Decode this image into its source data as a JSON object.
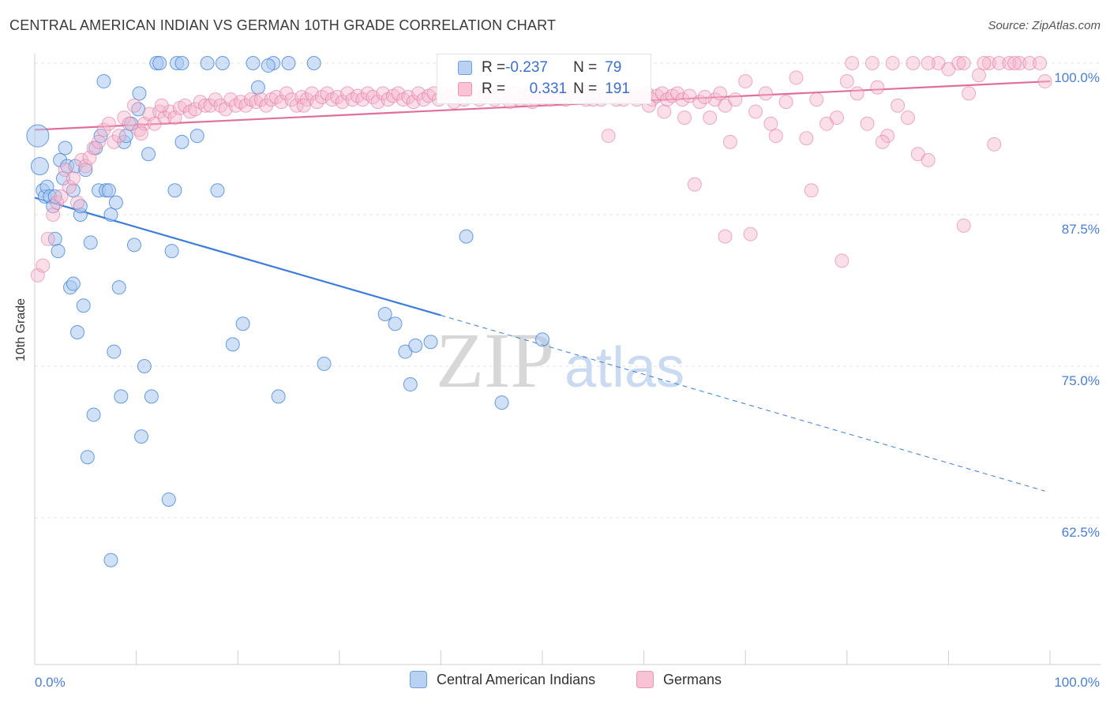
{
  "header": {
    "title": "CENTRAL AMERICAN INDIAN VS GERMAN 10TH GRADE CORRELATION CHART",
    "source": "Source: ZipAtlas.com"
  },
  "watermark": {
    "zip": "ZIP",
    "atlas": "atlas"
  },
  "stats": {
    "blue": {
      "r_label": "R = ",
      "r_value": "-0.237",
      "n_label": "N = ",
      "n_value": "79"
    },
    "pink": {
      "r_label": "R = ",
      "r_value": "0.331",
      "n_label": "N = ",
      "n_value": "191"
    }
  },
  "legend": {
    "blue_label": "Central American Indians",
    "pink_label": "Germans"
  },
  "colors": {
    "blue": "#3b7dd8",
    "blue_fill": "#a9c8f0",
    "pink": "#e0709a",
    "pink_fill": "#f4b6cb",
    "axis_text": "#4a7fd1"
  },
  "chart_data": {
    "type": "scatter",
    "title": "CENTRAL AMERICAN INDIAN VS GERMAN 10TH GRADE CORRELATION CHART",
    "xlabel": "",
    "ylabel": "10th Grade",
    "x_tick_labels": [
      "0.0%",
      "100.0%"
    ],
    "y_tick_labels": [
      "100.0%",
      "87.5%",
      "75.0%",
      "62.5%"
    ],
    "y_ticks": [
      100.0,
      87.5,
      75.0,
      62.5
    ],
    "xlim": [
      0,
      100
    ],
    "ylim": [
      50.5,
      101
    ],
    "grid": true,
    "series": [
      {
        "name": "Central American Indians",
        "color": "#3b7dd8",
        "trend": {
          "x": [
            0,
            40
          ],
          "y": [
            88.9,
            79.2
          ],
          "dashed_to": {
            "x": 99.5,
            "y": 64.7
          }
        },
        "points": [
          [
            0.3,
            94.0
          ],
          [
            0.5,
            91.5
          ],
          [
            0.8,
            89.5
          ],
          [
            1.0,
            89.0
          ],
          [
            1.2,
            89.8
          ],
          [
            1.5,
            89.0
          ],
          [
            1.8,
            88.2
          ],
          [
            2.0,
            85.5
          ],
          [
            2.3,
            84.5
          ],
          [
            2.5,
            92.0
          ],
          [
            2.8,
            90.5
          ],
          [
            3.0,
            93.0
          ],
          [
            3.2,
            91.5
          ],
          [
            3.5,
            81.5
          ],
          [
            3.8,
            81.8
          ],
          [
            4.0,
            91.5
          ],
          [
            4.2,
            77.8
          ],
          [
            4.5,
            87.5
          ],
          [
            4.8,
            80.0
          ],
          [
            5.0,
            91.2
          ],
          [
            5.2,
            67.5
          ],
          [
            5.5,
            85.2
          ],
          [
            5.8,
            71.0
          ],
          [
            6.0,
            93.0
          ],
          [
            6.3,
            89.5
          ],
          [
            6.5,
            94.0
          ],
          [
            6.8,
            98.5
          ],
          [
            7.0,
            89.5
          ],
          [
            7.3,
            89.5
          ],
          [
            7.5,
            87.5
          ],
          [
            7.8,
            76.2
          ],
          [
            8.0,
            88.5
          ],
          [
            8.3,
            81.5
          ],
          [
            8.5,
            72.5
          ],
          [
            8.8,
            93.5
          ],
          [
            9.0,
            94.0
          ],
          [
            7.5,
            59.0
          ],
          [
            9.5,
            95.0
          ],
          [
            9.8,
            85.0
          ],
          [
            10.2,
            96.2
          ],
          [
            10.3,
            97.5
          ],
          [
            10.5,
            69.2
          ],
          [
            10.8,
            75.0
          ],
          [
            11.2,
            92.5
          ],
          [
            11.5,
            72.5
          ],
          [
            12.0,
            100.0
          ],
          [
            12.3,
            100.0
          ],
          [
            13.2,
            64.0
          ],
          [
            13.5,
            84.5
          ],
          [
            13.8,
            89.5
          ],
          [
            14.0,
            100.0
          ],
          [
            14.5,
            93.5
          ],
          [
            16.0,
            94.0
          ],
          [
            17.0,
            100.0
          ],
          [
            18.0,
            89.5
          ],
          [
            18.5,
            100.0
          ],
          [
            14.5,
            100.0
          ],
          [
            19.5,
            76.8
          ],
          [
            20.5,
            78.5
          ],
          [
            21.5,
            100.0
          ],
          [
            22.0,
            98.0
          ],
          [
            23.5,
            100.0
          ],
          [
            23.0,
            99.8
          ],
          [
            24.0,
            72.5
          ],
          [
            25.0,
            100.0
          ],
          [
            27.5,
            100.0
          ],
          [
            28.5,
            75.2
          ],
          [
            34.5,
            79.3
          ],
          [
            35.5,
            78.5
          ],
          [
            36.5,
            76.2
          ],
          [
            37.0,
            73.5
          ],
          [
            37.5,
            76.7
          ],
          [
            39.0,
            77.0
          ],
          [
            42.5,
            85.7
          ],
          [
            46.0,
            72.0
          ],
          [
            50.0,
            77.2
          ],
          [
            2.0,
            89.0
          ],
          [
            4.5,
            88.2
          ],
          [
            3.8,
            89.5
          ]
        ]
      },
      {
        "name": "Germans",
        "color": "#e0709a",
        "trend": {
          "x": [
            0,
            100
          ],
          "y": [
            94.5,
            98.5
          ]
        },
        "points": [
          [
            0.3,
            82.5
          ],
          [
            0.8,
            83.3
          ],
          [
            1.3,
            85.5
          ],
          [
            1.8,
            87.5
          ],
          [
            2.2,
            88.5
          ],
          [
            2.6,
            89.0
          ],
          [
            3.0,
            91.2
          ],
          [
            3.4,
            89.8
          ],
          [
            3.8,
            90.5
          ],
          [
            4.2,
            88.5
          ],
          [
            4.6,
            92.0
          ],
          [
            5.0,
            91.5
          ],
          [
            5.4,
            92.2
          ],
          [
            5.8,
            93.0
          ],
          [
            6.3,
            93.5
          ],
          [
            6.8,
            94.5
          ],
          [
            7.3,
            95.0
          ],
          [
            7.8,
            93.5
          ],
          [
            8.3,
            94.0
          ],
          [
            8.8,
            95.5
          ],
          [
            9.3,
            95.0
          ],
          [
            9.8,
            96.5
          ],
          [
            10.3,
            94.5
          ],
          [
            10.8,
            95.0
          ],
          [
            11.3,
            95.8
          ],
          [
            11.8,
            95.0
          ],
          [
            12.3,
            96.0
          ],
          [
            12.8,
            95.5
          ],
          [
            13.3,
            96.0
          ],
          [
            13.8,
            95.5
          ],
          [
            14.3,
            96.3
          ],
          [
            14.8,
            96.5
          ],
          [
            15.3,
            96.0
          ],
          [
            15.8,
            96.2
          ],
          [
            16.3,
            96.8
          ],
          [
            16.8,
            96.5
          ],
          [
            17.3,
            96.5
          ],
          [
            17.8,
            97.0
          ],
          [
            18.3,
            96.5
          ],
          [
            18.8,
            96.2
          ],
          [
            19.3,
            97.0
          ],
          [
            19.8,
            96.5
          ],
          [
            20.3,
            96.8
          ],
          [
            20.8,
            96.5
          ],
          [
            21.3,
            97.0
          ],
          [
            21.8,
            96.8
          ],
          [
            22.3,
            97.0
          ],
          [
            22.8,
            96.5
          ],
          [
            23.3,
            97.0
          ],
          [
            23.8,
            97.2
          ],
          [
            24.3,
            96.8
          ],
          [
            24.8,
            97.5
          ],
          [
            25.3,
            97.0
          ],
          [
            25.8,
            96.5
          ],
          [
            26.3,
            97.2
          ],
          [
            26.8,
            97.0
          ],
          [
            27.3,
            97.5
          ],
          [
            27.8,
            96.8
          ],
          [
            28.3,
            97.2
          ],
          [
            28.8,
            97.5
          ],
          [
            29.3,
            97.0
          ],
          [
            29.8,
            97.2
          ],
          [
            30.3,
            96.8
          ],
          [
            30.8,
            97.5
          ],
          [
            31.3,
            97.0
          ],
          [
            31.8,
            97.3
          ],
          [
            32.3,
            97.0
          ],
          [
            32.8,
            97.5
          ],
          [
            33.3,
            97.2
          ],
          [
            33.8,
            96.8
          ],
          [
            34.3,
            97.5
          ],
          [
            34.8,
            97.0
          ],
          [
            35.3,
            97.3
          ],
          [
            35.8,
            97.5
          ],
          [
            36.3,
            97.0
          ],
          [
            36.8,
            97.2
          ],
          [
            37.3,
            96.8
          ],
          [
            37.8,
            97.5
          ],
          [
            38.3,
            97.0
          ],
          [
            38.8,
            97.3
          ],
          [
            39.3,
            97.5
          ],
          [
            39.8,
            97.0
          ],
          [
            40.3,
            97.5
          ],
          [
            40.8,
            97.2
          ],
          [
            41.3,
            96.8
          ],
          [
            41.8,
            97.5
          ],
          [
            42.3,
            97.0
          ],
          [
            42.8,
            97.3
          ],
          [
            43.3,
            97.5
          ],
          [
            43.8,
            97.0
          ],
          [
            44.3,
            97.3
          ],
          [
            44.8,
            97.5
          ],
          [
            45.3,
            97.0
          ],
          [
            45.8,
            97.5
          ],
          [
            46.3,
            97.2
          ],
          [
            46.8,
            96.8
          ],
          [
            47.3,
            97.5
          ],
          [
            47.8,
            97.0
          ],
          [
            48.3,
            97.3
          ],
          [
            48.8,
            97.5
          ],
          [
            49.3,
            97.0
          ],
          [
            49.8,
            97.5
          ],
          [
            50.3,
            97.2
          ],
          [
            50.8,
            97.0
          ],
          [
            51.3,
            97.5
          ],
          [
            51.8,
            97.3
          ],
          [
            52.3,
            97.0
          ],
          [
            52.8,
            97.5
          ],
          [
            53.3,
            97.2
          ],
          [
            53.8,
            97.5
          ],
          [
            54.3,
            97.0
          ],
          [
            54.8,
            97.3
          ],
          [
            55.3,
            97.5
          ],
          [
            55.8,
            97.0
          ],
          [
            56.3,
            97.3
          ],
          [
            56.8,
            97.5
          ],
          [
            57.3,
            97.0
          ],
          [
            57.8,
            97.5
          ],
          [
            58.3,
            97.2
          ],
          [
            58.8,
            97.5
          ],
          [
            59.3,
            97.0
          ],
          [
            59.8,
            97.3
          ],
          [
            60.3,
            97.5
          ],
          [
            60.8,
            97.0
          ],
          [
            61.3,
            97.3
          ],
          [
            61.8,
            97.5
          ],
          [
            62.3,
            97.0
          ],
          [
            62.8,
            97.3
          ],
          [
            63.3,
            97.5
          ],
          [
            63.8,
            97.0
          ],
          [
            64.5,
            97.3
          ],
          [
            65.5,
            96.8
          ],
          [
            66.5,
            95.5
          ],
          [
            67.0,
            97.0
          ],
          [
            67.5,
            97.5
          ],
          [
            68.0,
            96.5
          ],
          [
            68.5,
            93.5
          ],
          [
            69.0,
            97.0
          ],
          [
            70.0,
            98.5
          ],
          [
            71.0,
            96.0
          ],
          [
            72.0,
            97.5
          ],
          [
            73.0,
            94.0
          ],
          [
            74.0,
            96.8
          ],
          [
            75.0,
            98.8
          ],
          [
            76.0,
            93.8
          ],
          [
            77.0,
            97.0
          ],
          [
            78.0,
            95.0
          ],
          [
            79.0,
            95.5
          ],
          [
            80.0,
            98.5
          ],
          [
            81.0,
            97.5
          ],
          [
            82.0,
            95.0
          ],
          [
            83.0,
            98.0
          ],
          [
            84.0,
            94.0
          ],
          [
            85.0,
            96.5
          ],
          [
            86.0,
            95.5
          ],
          [
            87.0,
            92.5
          ],
          [
            88.0,
            92.0
          ],
          [
            89.0,
            100.0
          ],
          [
            90.0,
            99.5
          ],
          [
            91.0,
            100.0
          ],
          [
            92.0,
            97.5
          ],
          [
            93.0,
            99.0
          ],
          [
            94.0,
            100.0
          ],
          [
            95.0,
            100.0
          ],
          [
            96.0,
            100.0
          ],
          [
            97.0,
            100.0
          ],
          [
            98.0,
            100.0
          ],
          [
            99.0,
            100.0
          ],
          [
            99.5,
            98.5
          ],
          [
            80.5,
            100.0
          ],
          [
            82.5,
            100.0
          ],
          [
            84.5,
            100.0
          ],
          [
            86.5,
            100.0
          ],
          [
            88.0,
            100.0
          ],
          [
            91.5,
            100.0
          ],
          [
            93.5,
            100.0
          ],
          [
            96.5,
            100.0
          ],
          [
            56.5,
            94.0
          ],
          [
            58.0,
            97.0
          ],
          [
            62.0,
            96.0
          ],
          [
            64.0,
            95.5
          ],
          [
            65.0,
            90.0
          ],
          [
            68.0,
            85.7
          ],
          [
            70.5,
            85.9
          ],
          [
            76.5,
            89.5
          ],
          [
            79.5,
            83.7
          ],
          [
            83.5,
            93.5
          ],
          [
            91.5,
            86.6
          ],
          [
            94.5,
            93.3
          ],
          [
            10.5,
            94.2
          ],
          [
            12.5,
            96.5
          ],
          [
            26.5,
            96.5
          ],
          [
            49.0,
            96.8
          ],
          [
            55.0,
            97.0
          ],
          [
            60.5,
            96.5
          ],
          [
            66.0,
            97.2
          ],
          [
            72.5,
            95.0
          ]
        ]
      }
    ]
  }
}
